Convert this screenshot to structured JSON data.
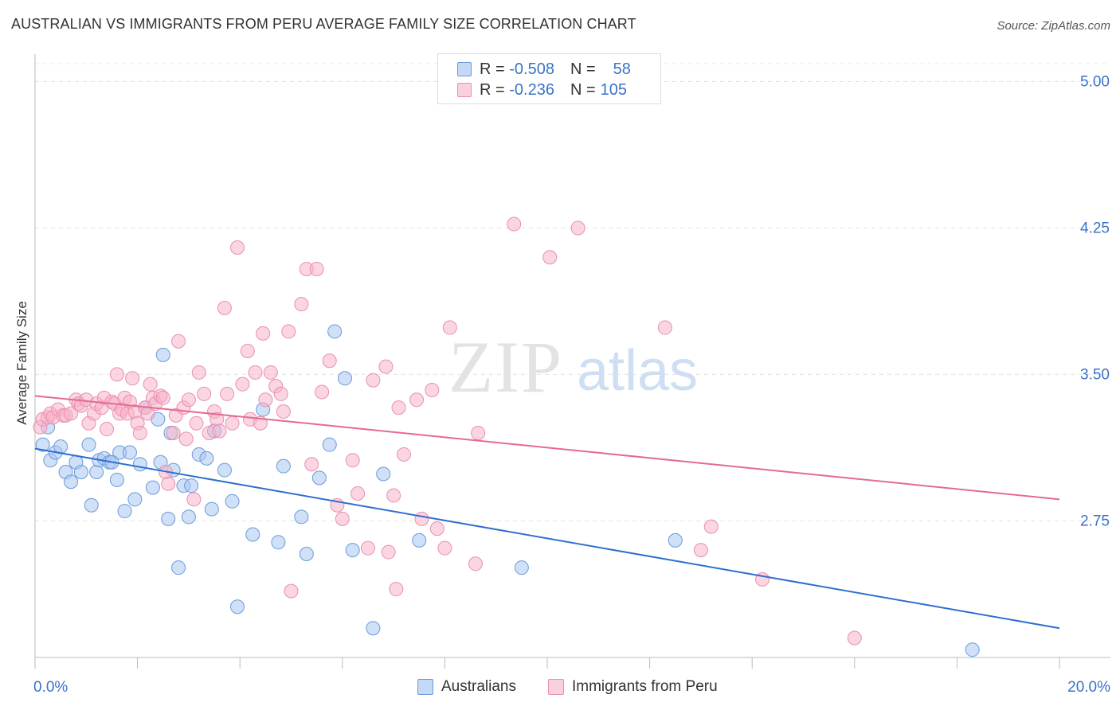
{
  "title": "AUSTRALIAN VS IMMIGRANTS FROM PERU AVERAGE FAMILY SIZE CORRELATION CHART",
  "source": "Source: ZipAtlas.com",
  "watermark": {
    "zip": "ZIP",
    "atlas": "atlas"
  },
  "legend_top": {
    "rows": [
      {
        "r_label": "R =",
        "r_value": "-0.508",
        "n_label": "N =",
        "n_value": "58",
        "color": "#a9c7f0"
      },
      {
        "r_label": "R =",
        "r_value": "-0.236",
        "n_label": "N =",
        "n_value": "105",
        "color": "#f7b3c9"
      }
    ]
  },
  "chart_data": {
    "type": "scatter",
    "title": "AUSTRALIAN VS IMMIGRANTS FROM PERU AVERAGE FAMILY SIZE CORRELATION CHART",
    "xlabel": "",
    "ylabel": "Average Family Size",
    "xlim": [
      0,
      20
    ],
    "ylim": [
      2.05,
      5.1
    ],
    "x_tick_labels": [
      "0.0%",
      "20.0%"
    ],
    "y_ticks": [
      2.75,
      3.5,
      4.25,
      5.0
    ],
    "y_tick_labels": [
      "2.75",
      "3.50",
      "4.25",
      "5.00"
    ],
    "grid": true,
    "legend_position": "bottom",
    "series": [
      {
        "name": "Australians",
        "color": "#a9c7f0",
        "edge": "#6a9ad9",
        "line_color": "#2f6fd0",
        "trend": {
          "x": [
            0,
            20
          ],
          "y": [
            3.12,
            2.2
          ]
        },
        "points": [
          [
            0.15,
            3.14
          ],
          [
            0.3,
            3.06
          ],
          [
            0.4,
            3.1
          ],
          [
            0.5,
            3.13
          ],
          [
            0.6,
            3.0
          ],
          [
            0.7,
            2.95
          ],
          [
            0.8,
            3.05
          ],
          [
            0.9,
            3.0
          ],
          [
            1.05,
            3.14
          ],
          [
            1.1,
            2.83
          ],
          [
            1.2,
            3.0
          ],
          [
            1.25,
            3.06
          ],
          [
            1.35,
            3.07
          ],
          [
            1.45,
            3.05
          ],
          [
            1.6,
            2.96
          ],
          [
            1.65,
            3.1
          ],
          [
            1.75,
            2.8
          ],
          [
            1.85,
            3.1
          ],
          [
            1.95,
            2.86
          ],
          [
            2.05,
            3.04
          ],
          [
            2.15,
            3.33
          ],
          [
            2.3,
            2.92
          ],
          [
            2.4,
            3.27
          ],
          [
            2.45,
            3.05
          ],
          [
            2.5,
            3.6
          ],
          [
            2.6,
            2.76
          ],
          [
            2.65,
            3.2
          ],
          [
            2.7,
            3.01
          ],
          [
            2.8,
            2.51
          ],
          [
            2.9,
            2.93
          ],
          [
            3.0,
            2.77
          ],
          [
            3.05,
            2.93
          ],
          [
            3.2,
            3.09
          ],
          [
            3.35,
            3.07
          ],
          [
            3.45,
            2.81
          ],
          [
            3.5,
            3.21
          ],
          [
            3.7,
            3.01
          ],
          [
            3.85,
            2.85
          ],
          [
            3.95,
            2.31
          ],
          [
            4.25,
            2.68
          ],
          [
            4.45,
            3.32
          ],
          [
            4.75,
            2.64
          ],
          [
            4.85,
            3.03
          ],
          [
            5.2,
            2.77
          ],
          [
            5.3,
            2.58
          ],
          [
            5.55,
            2.97
          ],
          [
            5.75,
            3.14
          ],
          [
            5.85,
            3.72
          ],
          [
            6.05,
            3.48
          ],
          [
            6.2,
            2.6
          ],
          [
            6.6,
            2.2
          ],
          [
            6.8,
            2.99
          ],
          [
            7.5,
            2.65
          ],
          [
            9.5,
            2.51
          ],
          [
            12.5,
            2.65
          ],
          [
            18.3,
            2.09
          ],
          [
            0.25,
            3.23
          ],
          [
            1.5,
            3.05
          ]
        ]
      },
      {
        "name": "Immigrants from Peru",
        "color": "#f7b3c9",
        "edge": "#e890ae",
        "line_color": "#e46a93",
        "trend": {
          "x": [
            0,
            20
          ],
          "y": [
            3.39,
            2.86
          ]
        },
        "points": [
          [
            0.1,
            3.23
          ],
          [
            0.15,
            3.27
          ],
          [
            0.25,
            3.28
          ],
          [
            0.3,
            3.3
          ],
          [
            0.35,
            3.28
          ],
          [
            0.45,
            3.32
          ],
          [
            0.55,
            3.29
          ],
          [
            0.6,
            3.29
          ],
          [
            0.7,
            3.3
          ],
          [
            0.8,
            3.37
          ],
          [
            0.85,
            3.35
          ],
          [
            0.9,
            3.34
          ],
          [
            1.0,
            3.37
          ],
          [
            1.05,
            3.25
          ],
          [
            1.15,
            3.3
          ],
          [
            1.2,
            3.35
          ],
          [
            1.3,
            3.33
          ],
          [
            1.35,
            3.38
          ],
          [
            1.4,
            3.22
          ],
          [
            1.5,
            3.36
          ],
          [
            1.55,
            3.35
          ],
          [
            1.6,
            3.5
          ],
          [
            1.65,
            3.3
          ],
          [
            1.7,
            3.32
          ],
          [
            1.75,
            3.38
          ],
          [
            1.8,
            3.3
          ],
          [
            1.85,
            3.36
          ],
          [
            1.9,
            3.48
          ],
          [
            1.95,
            3.31
          ],
          [
            2.0,
            3.25
          ],
          [
            2.05,
            3.2
          ],
          [
            2.15,
            3.33
          ],
          [
            2.2,
            3.3
          ],
          [
            2.25,
            3.45
          ],
          [
            2.3,
            3.38
          ],
          [
            2.35,
            3.35
          ],
          [
            2.45,
            3.39
          ],
          [
            2.5,
            3.38
          ],
          [
            2.55,
            3.0
          ],
          [
            2.6,
            2.94
          ],
          [
            2.7,
            3.2
          ],
          [
            2.75,
            3.29
          ],
          [
            2.8,
            3.67
          ],
          [
            2.9,
            3.33
          ],
          [
            2.95,
            3.17
          ],
          [
            3.0,
            3.37
          ],
          [
            3.1,
            2.86
          ],
          [
            3.15,
            3.25
          ],
          [
            3.2,
            3.51
          ],
          [
            3.3,
            3.4
          ],
          [
            3.4,
            3.2
          ],
          [
            3.5,
            3.31
          ],
          [
            3.55,
            3.27
          ],
          [
            3.6,
            3.21
          ],
          [
            3.7,
            3.84
          ],
          [
            3.75,
            3.4
          ],
          [
            3.85,
            3.25
          ],
          [
            3.95,
            4.15
          ],
          [
            4.05,
            3.45
          ],
          [
            4.15,
            3.62
          ],
          [
            4.2,
            3.27
          ],
          [
            4.3,
            3.51
          ],
          [
            4.4,
            3.25
          ],
          [
            4.45,
            3.71
          ],
          [
            4.5,
            3.37
          ],
          [
            4.6,
            3.51
          ],
          [
            4.7,
            3.44
          ],
          [
            4.8,
            3.4
          ],
          [
            4.85,
            3.31
          ],
          [
            4.95,
            3.72
          ],
          [
            5.0,
            2.39
          ],
          [
            5.2,
            3.86
          ],
          [
            5.3,
            4.04
          ],
          [
            5.4,
            3.04
          ],
          [
            5.5,
            4.04
          ],
          [
            5.6,
            3.41
          ],
          [
            5.75,
            3.57
          ],
          [
            5.9,
            2.83
          ],
          [
            6.0,
            2.76
          ],
          [
            6.2,
            3.06
          ],
          [
            6.3,
            2.89
          ],
          [
            6.5,
            2.61
          ],
          [
            6.6,
            3.47
          ],
          [
            6.85,
            3.54
          ],
          [
            6.9,
            2.59
          ],
          [
            7.0,
            2.88
          ],
          [
            7.05,
            2.4
          ],
          [
            7.1,
            3.33
          ],
          [
            7.2,
            3.09
          ],
          [
            7.45,
            3.37
          ],
          [
            7.55,
            2.76
          ],
          [
            7.75,
            3.42
          ],
          [
            7.85,
            2.71
          ],
          [
            8.0,
            2.61
          ],
          [
            8.1,
            3.74
          ],
          [
            8.6,
            2.53
          ],
          [
            8.65,
            3.2
          ],
          [
            9.35,
            4.27
          ],
          [
            10.05,
            4.1
          ],
          [
            10.6,
            4.25
          ],
          [
            12.3,
            3.74
          ],
          [
            13.0,
            2.6
          ],
          [
            13.2,
            2.72
          ],
          [
            14.2,
            2.45
          ],
          [
            16.0,
            2.15
          ]
        ]
      }
    ]
  },
  "bottom_legend": {
    "items": [
      {
        "label": "Australians"
      },
      {
        "label": "Immigrants from Peru"
      }
    ]
  }
}
